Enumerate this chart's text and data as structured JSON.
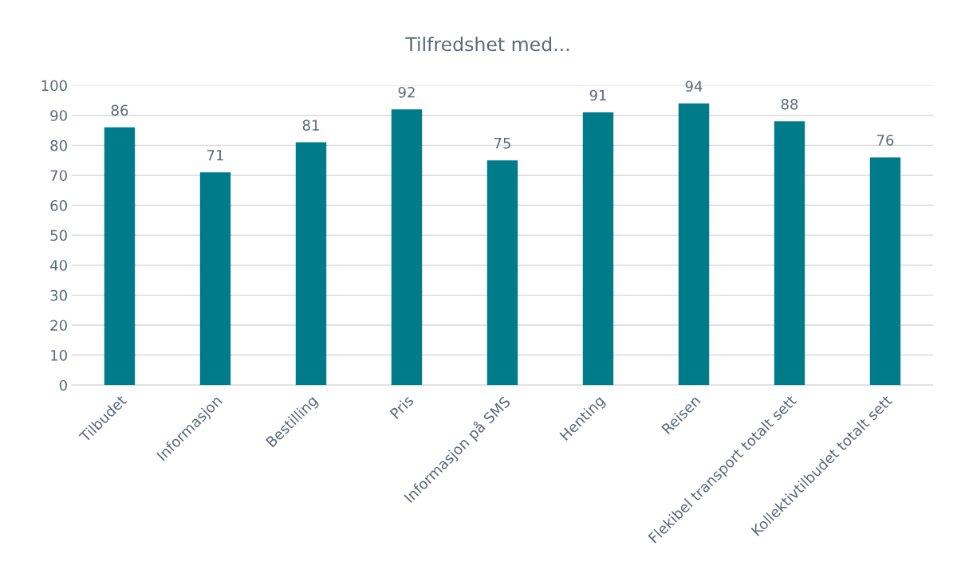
{
  "chart_data": {
    "type": "bar",
    "title": "Tilfredshet med...",
    "categories": [
      "Tilbudet",
      "Informasjon",
      "Bestilling",
      "Pris",
      "Informasjon på SMS",
      "Henting",
      "Reisen",
      "Flekibel transport totalt sett",
      "Kollektivtilbudet totalt sett"
    ],
    "values": [
      86,
      71,
      81,
      92,
      75,
      91,
      94,
      88,
      76
    ],
    "color": "#007b8a",
    "ylim": [
      0,
      100
    ],
    "yticks": [
      0,
      10,
      20,
      30,
      40,
      50,
      60,
      70,
      80,
      90,
      100
    ],
    "grid": "y",
    "data_labels": true
  }
}
